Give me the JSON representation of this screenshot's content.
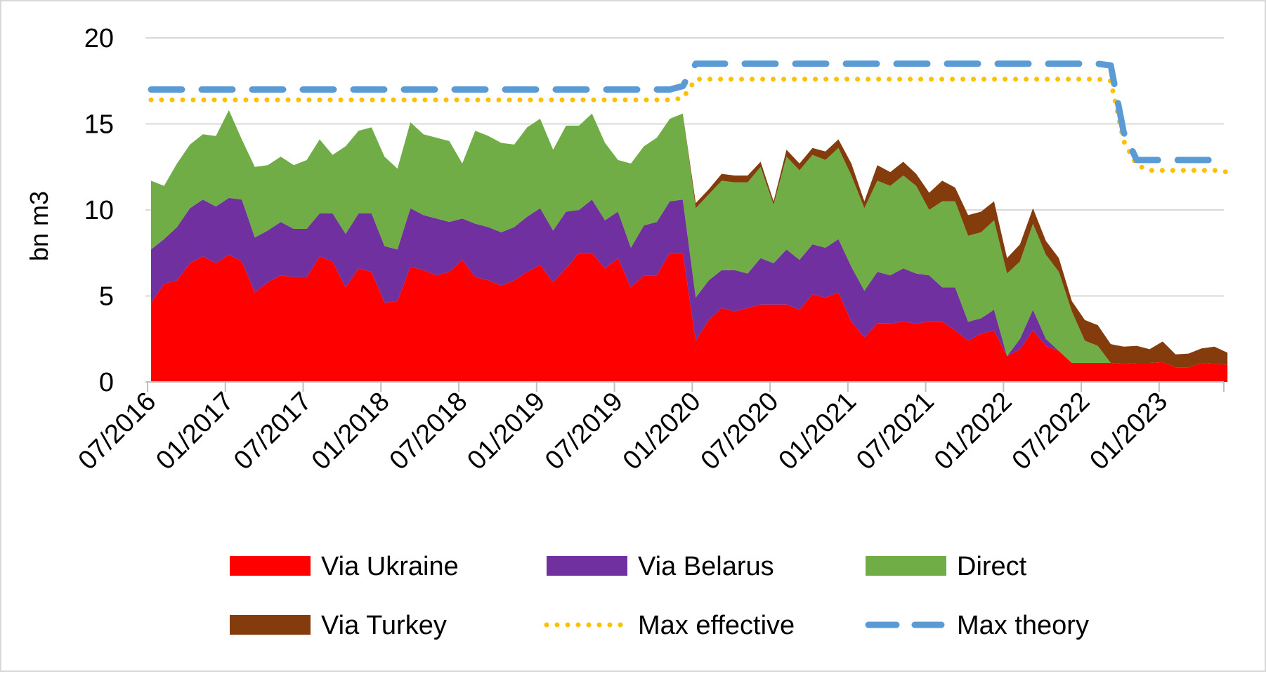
{
  "chart_data": {
    "type": "area",
    "ylabel": "bn m3",
    "xlabel": "",
    "ylim": [
      0,
      20
    ],
    "yticks": [
      "0",
      "5",
      "10",
      "15",
      "20"
    ],
    "xticks": [
      "07/2016",
      "01/2017",
      "07/2017",
      "01/2018",
      "07/2018",
      "01/2019",
      "07/2019",
      "01/2020",
      "07/2020",
      "01/2021",
      "07/2021",
      "01/2022",
      "07/2022",
      "01/2023"
    ],
    "x_start": "07/2016",
    "x_end": "06/2023",
    "grid": "horizontal",
    "legend_position": "bottom",
    "colors": {
      "Via Ukraine": "#ff0000",
      "Via Belarus": "#7030a0",
      "Direct": "#70ad47",
      "Via Turkey": "#843c0c",
      "Max effective": "#ffc000",
      "Max theory": "#5b9bd5"
    },
    "stacked_series": [
      {
        "name": "Via Ukraine",
        "values": [
          4.6,
          5.7,
          5.9,
          6.9,
          7.3,
          6.9,
          7.4,
          7.0,
          5.2,
          5.8,
          6.2,
          6.1,
          6.1,
          7.3,
          7.0,
          5.5,
          6.6,
          6.4,
          4.6,
          4.7,
          6.7,
          6.5,
          6.2,
          6.4,
          7.1,
          6.1,
          5.9,
          5.6,
          5.9,
          6.4,
          6.8,
          5.8,
          6.6,
          7.5,
          7.5,
          6.6,
          7.2,
          5.5,
          6.2,
          6.2,
          7.5,
          7.5,
          2.4,
          3.6,
          4.3,
          4.1,
          4.3,
          4.5,
          4.5,
          4.5,
          4.2,
          5.1,
          4.9,
          5.2,
          3.5,
          2.6,
          3.4,
          3.4,
          3.5,
          3.4,
          3.5,
          3.5,
          3.0,
          2.4,
          2.8,
          3.0,
          1.5,
          1.9,
          3.0,
          2.1,
          1.8,
          1.1,
          1.1,
          1.1,
          1.1,
          1.05,
          1.1,
          1.1,
          1.15,
          0.85,
          0.85,
          1.1,
          1.05,
          1.0
        ]
      },
      {
        "name": "Via Belarus",
        "values": [
          3.1,
          2.6,
          3.1,
          3.2,
          3.3,
          3.3,
          3.3,
          3.6,
          3.2,
          3.0,
          3.1,
          2.8,
          2.8,
          2.5,
          2.8,
          3.1,
          3.2,
          3.4,
          3.3,
          3.0,
          3.4,
          3.2,
          3.3,
          2.9,
          2.4,
          3.1,
          3.1,
          3.1,
          3.1,
          3.2,
          3.3,
          3.0,
          3.3,
          2.5,
          3.1,
          2.8,
          2.7,
          2.3,
          2.9,
          3.1,
          3.0,
          3.1,
          2.5,
          2.3,
          2.2,
          2.4,
          2.0,
          2.7,
          2.4,
          3.2,
          2.9,
          2.9,
          2.9,
          3.1,
          3.2,
          2.7,
          3.0,
          2.8,
          3.1,
          2.9,
          2.7,
          2.0,
          2.5,
          1.1,
          0.9,
          1.2,
          0.0,
          0.6,
          1.2,
          0.4,
          0.0,
          0.0,
          0.0,
          0.0,
          0.0,
          0.0,
          0.0,
          0.0,
          0.0,
          0.0,
          0.0,
          0.0,
          0.0,
          0.0
        ]
      },
      {
        "name": "Direct",
        "values": [
          4.0,
          3.1,
          3.7,
          3.7,
          3.8,
          4.1,
          5.1,
          3.5,
          4.1,
          3.8,
          3.8,
          3.7,
          4.0,
          4.3,
          3.4,
          5.1,
          4.8,
          5.0,
          5.2,
          4.7,
          5.0,
          4.7,
          4.7,
          4.7,
          3.2,
          5.4,
          5.3,
          5.2,
          4.8,
          5.2,
          5.2,
          4.7,
          5.0,
          4.9,
          5.0,
          4.5,
          3.0,
          4.9,
          4.6,
          4.9,
          4.8,
          5.0,
          5.2,
          5.0,
          5.2,
          5.1,
          5.3,
          5.3,
          3.4,
          5.4,
          5.2,
          5.2,
          5.1,
          5.3,
          5.3,
          4.8,
          5.3,
          5.2,
          5.4,
          5.1,
          3.8,
          5.0,
          5.0,
          5.0,
          5.0,
          5.2,
          4.8,
          4.5,
          5.0,
          4.9,
          4.6,
          3.0,
          1.3,
          1.0,
          0.0,
          0.0,
          0.0,
          0.0,
          0.0,
          0.0,
          0.0,
          0.0,
          0.0,
          0.0
        ]
      },
      {
        "name": "Via Turkey",
        "values": [
          0,
          0,
          0,
          0,
          0,
          0,
          0,
          0,
          0,
          0,
          0,
          0,
          0,
          0,
          0,
          0,
          0,
          0,
          0,
          0,
          0,
          0,
          0,
          0,
          0,
          0,
          0,
          0,
          0,
          0,
          0,
          0,
          0,
          0,
          0,
          0,
          0,
          0,
          0,
          0,
          0,
          0,
          0.3,
          0.3,
          0.4,
          0.4,
          0.4,
          0.3,
          0.2,
          0.4,
          0.4,
          0.4,
          0.5,
          0.5,
          0.7,
          0.4,
          0.9,
          0.8,
          0.8,
          0.7,
          1.0,
          1.2,
          0.8,
          1.2,
          1.2,
          1.1,
          0.9,
          1.0,
          0.9,
          0.8,
          0.8,
          0.6,
          1.2,
          1.2,
          1.1,
          1.0,
          1.0,
          0.8,
          1.2,
          0.75,
          0.8,
          0.85,
          1.0,
          0.7
        ]
      }
    ],
    "line_series": [
      {
        "name": "Max effective",
        "style": "dotted",
        "values": [
          16.4,
          16.4,
          16.4,
          16.4,
          16.4,
          16.4,
          16.4,
          16.4,
          16.4,
          16.4,
          16.4,
          16.4,
          16.4,
          16.4,
          16.4,
          16.4,
          16.4,
          16.4,
          16.4,
          16.4,
          16.4,
          16.4,
          16.4,
          16.4,
          16.4,
          16.4,
          16.4,
          16.4,
          16.4,
          16.4,
          16.4,
          16.4,
          16.4,
          16.4,
          16.4,
          16.4,
          16.4,
          16.4,
          16.4,
          16.4,
          16.4,
          16.5,
          17.6,
          17.6,
          17.6,
          17.6,
          17.6,
          17.6,
          17.6,
          17.6,
          17.6,
          17.6,
          17.6,
          17.6,
          17.6,
          17.6,
          17.6,
          17.6,
          17.6,
          17.6,
          17.6,
          17.6,
          17.6,
          17.6,
          17.6,
          17.6,
          17.6,
          17.6,
          17.6,
          17.6,
          17.6,
          17.6,
          17.6,
          17.6,
          17.5,
          14.0,
          12.6,
          12.3,
          12.3,
          12.3,
          12.3,
          12.3,
          12.3,
          12.2
        ]
      },
      {
        "name": "Max theory",
        "style": "dashed",
        "values": [
          17.0,
          17.0,
          17.0,
          17.0,
          17.0,
          17.0,
          17.0,
          17.0,
          17.0,
          17.0,
          17.0,
          17.0,
          17.0,
          17.0,
          17.0,
          17.0,
          17.0,
          17.0,
          17.0,
          17.0,
          17.0,
          17.0,
          17.0,
          17.0,
          17.0,
          17.0,
          17.0,
          17.0,
          17.0,
          17.0,
          17.0,
          17.0,
          17.0,
          17.0,
          17.0,
          17.0,
          17.0,
          17.0,
          17.0,
          17.0,
          17.0,
          17.2,
          18.5,
          18.5,
          18.5,
          18.5,
          18.5,
          18.5,
          18.5,
          18.5,
          18.5,
          18.5,
          18.5,
          18.5,
          18.5,
          18.5,
          18.5,
          18.5,
          18.5,
          18.5,
          18.5,
          18.5,
          18.5,
          18.5,
          18.5,
          18.5,
          18.5,
          18.5,
          18.5,
          18.5,
          18.5,
          18.5,
          18.5,
          18.5,
          18.4,
          14.5,
          12.9,
          12.9,
          12.9,
          12.9,
          12.9,
          12.9,
          12.9,
          12.8
        ]
      }
    ],
    "legend": [
      "Via Ukraine",
      "Via Belarus",
      "Direct",
      "Via Turkey",
      "Max effective",
      "Max theory"
    ]
  }
}
